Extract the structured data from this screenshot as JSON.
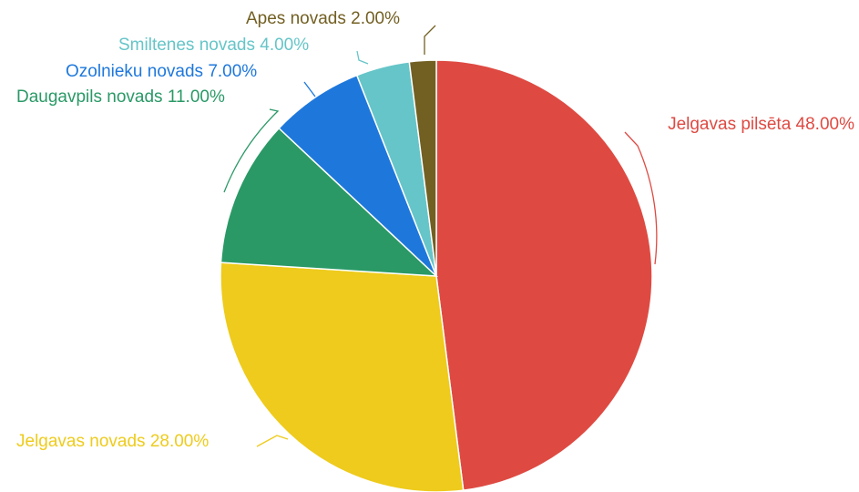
{
  "chart_data": {
    "type": "pie",
    "title": "",
    "slices": [
      {
        "label": "Jelgavas pilsēta",
        "value": 48.0,
        "display": "Jelgavas pilsēta 48.00%",
        "color": "#DE4A42"
      },
      {
        "label": "Jelgavas novads",
        "value": 28.0,
        "display": "Jelgavas novads 28.00%",
        "color": "#EECB1C"
      },
      {
        "label": "Daugavpils novads",
        "value": 11.0,
        "display": "Daugavpils novads 11.00%",
        "color": "#2A9966"
      },
      {
        "label": "Ozolnieku novads",
        "value": 7.0,
        "display": "Ozolnieku novads 7.00%",
        "color": "#1E78DC"
      },
      {
        "label": "Smiltenes novads",
        "value": 4.0,
        "display": "Smiltenes novads 4.00%",
        "color": "#66C5C8"
      },
      {
        "label": "Apes novads",
        "value": 2.0,
        "display": "Apes novads 2.00%",
        "color": "#725F22"
      }
    ],
    "legend": "none",
    "start_angle_deg": 0,
    "direction": "clockwise"
  }
}
